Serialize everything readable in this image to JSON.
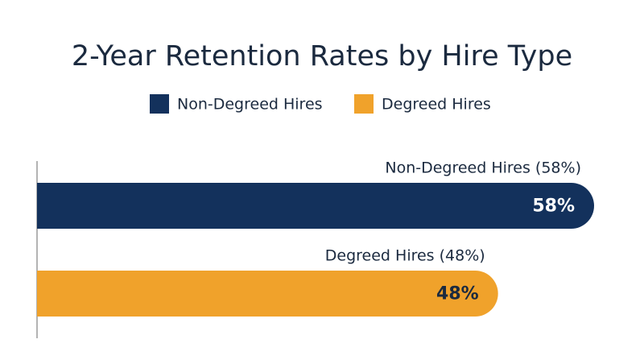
{
  "chart_data": {
    "type": "bar",
    "orientation": "horizontal",
    "title": "2-Year Retention Rates by Hire Type",
    "series": [
      {
        "name": "Non-Degreed Hires",
        "color": "#13315c",
        "values": [
          58
        ],
        "value_labels": [
          "58%"
        ],
        "label_color": "#ffffff"
      },
      {
        "name": "Degreed Hires",
        "color": "#f0a22b",
        "values": [
          48
        ],
        "value_labels": [
          "48%"
        ],
        "label_color": "#1b2a3f"
      }
    ],
    "annotations": [
      "Non-Degreed Hires (58%)",
      "Degreed Hires (48%)"
    ],
    "legend": "top"
  }
}
